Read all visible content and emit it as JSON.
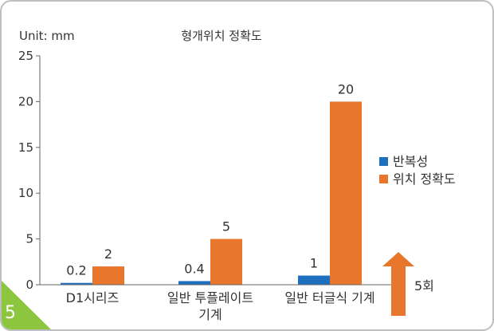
{
  "badge": {
    "number": "5",
    "color": "#8cc63f"
  },
  "annotation": {
    "label": "5회",
    "color": "#e8762d"
  },
  "chart_data": {
    "type": "bar",
    "title": "형개위치 정확도",
    "unit_label": "Unit: mm",
    "xlabel": "",
    "ylabel": "",
    "ylim": [
      0,
      25
    ],
    "yticks": [
      0,
      5,
      10,
      15,
      20,
      25
    ],
    "grid": false,
    "legend_position": "right",
    "categories": [
      {
        "lines": [
          "D1시리즈"
        ]
      },
      {
        "lines": [
          "일반 투플레이트",
          "기계"
        ]
      },
      {
        "lines": [
          "일반 터글식 기계"
        ]
      }
    ],
    "series": [
      {
        "name": "반복성",
        "color": "#1f6fbf",
        "values": [
          0.2,
          0.4,
          1
        ]
      },
      {
        "name": "위치 정확도",
        "color": "#e8762d",
        "values": [
          2,
          5,
          20
        ]
      }
    ],
    "data_labels": [
      [
        "0.2",
        "0.4",
        "1"
      ],
      [
        "2",
        "5",
        "20"
      ]
    ]
  }
}
